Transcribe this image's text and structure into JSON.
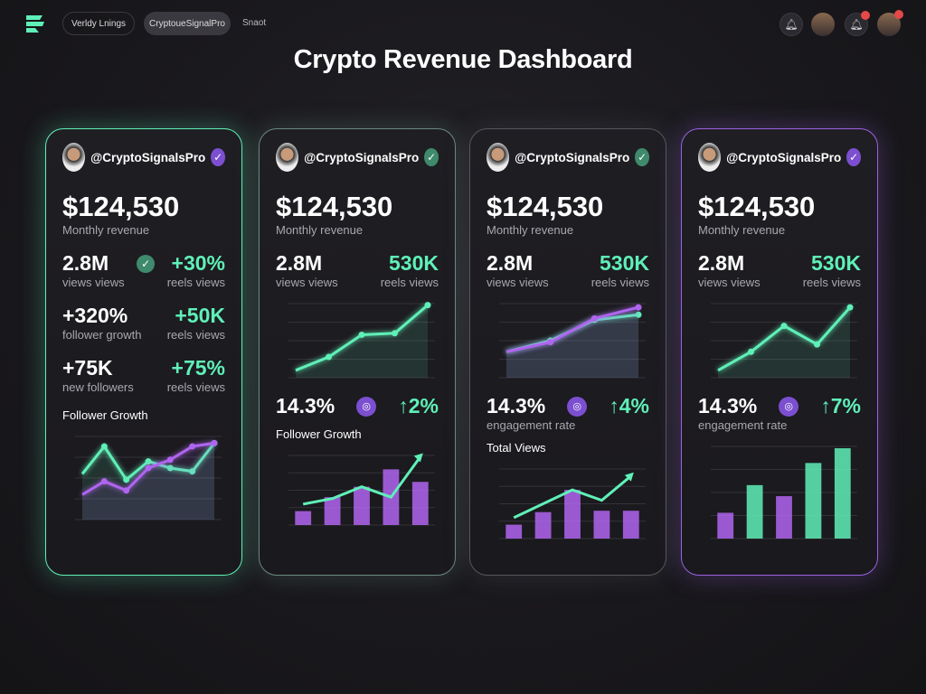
{
  "nav": {
    "pill1": "Verldy Lnings",
    "pill2": "CryptoueSignalPro",
    "link": "Snaot"
  },
  "title": "Crypto Revenue Dashboard",
  "colors": {
    "green": "#5ff0b8",
    "purple": "#b065f0",
    "bg": "#19181c"
  },
  "cards": [
    {
      "glow": "#5ff0b8",
      "handle": "@CryptoSignalsPro",
      "verified_color": "#7b4fd0",
      "revenue": "$124,530",
      "revenue_label": "Monthly revenue",
      "rows": [
        [
          "2.8M",
          "views views",
          "+30%",
          "reels views"
        ],
        [
          "+320%",
          "follower growth",
          "+50K",
          "reels views"
        ],
        [
          "+75K",
          "new followers",
          "+75%",
          "reels views"
        ]
      ],
      "chart_title": "Follower Growth"
    },
    {
      "glow": "#6a8a7e",
      "handle": "@CryptoSignalsPro",
      "verified_color": "#3f8a6c",
      "revenue": "$124,530",
      "revenue_label": "Monthly revenue",
      "rows": [
        [
          "2.8M",
          "views views",
          "530K",
          "reels views"
        ]
      ],
      "metric": "14.3%",
      "change": "↑2%",
      "metric_label": "",
      "chart_title": "Follower Growth"
    },
    {
      "glow": "#55555c",
      "handle": "@CryptoSignalsPro",
      "verified_color": "#3f8a6c",
      "revenue": "$124,530",
      "revenue_label": "Monthly revenue",
      "rows": [
        [
          "2.8M",
          "views views",
          "530K",
          "reels views"
        ]
      ],
      "metric": "14.3%",
      "change": "↑4%",
      "metric_label": "engagement rate",
      "chart_title": "Total Views"
    },
    {
      "glow": "#9a62e0",
      "handle": "@CryptoSignalsPro",
      "verified_color": "#7b4fd0",
      "revenue": "$124,530",
      "revenue_label": "Monthly revenue",
      "rows": [
        [
          "2.8M",
          "views views",
          "530K",
          "reels views"
        ]
      ],
      "metric": "14.3%",
      "change": "↑7%",
      "metric_label": "engagement rate",
      "chart_title": ""
    }
  ],
  "chart_data": [
    {
      "type": "line",
      "series": [
        {
          "color": "#5ff0b8",
          "values": [
            55,
            88,
            48,
            70,
            62,
            58,
            92
          ]
        },
        {
          "color": "#b065f0",
          "values": [
            30,
            46,
            35,
            62,
            72,
            88,
            92
          ]
        }
      ]
    },
    {
      "type": "line",
      "series": [
        {
          "color": "#5ff0b8",
          "values": [
            10,
            28,
            58,
            60,
            98
          ]
        }
      ]
    },
    {
      "type": "bar",
      "bars": [
        {
          "c": "#b065f0",
          "v": 20
        },
        {
          "c": "#b065f0",
          "v": 40
        },
        {
          "c": "#b065f0",
          "v": 55
        },
        {
          "c": "#b065f0",
          "v": 80
        },
        {
          "c": "#b065f0",
          "v": 62
        }
      ],
      "line": [
        30,
        38,
        55,
        40,
        98
      ]
    },
    {
      "type": "line",
      "series": [
        {
          "color": "#5ff0b8",
          "values": [
            35,
            50,
            78,
            85
          ]
        },
        {
          "color": "#b065f0",
          "values": [
            35,
            48,
            80,
            95
          ]
        }
      ]
    },
    {
      "type": "bar",
      "bars": [
        {
          "c": "#b065f0",
          "v": 20
        },
        {
          "c": "#b065f0",
          "v": 38
        },
        {
          "c": "#b065f0",
          "v": 70
        },
        {
          "c": "#b065f0",
          "v": 40
        },
        {
          "c": "#b065f0",
          "v": 40
        }
      ],
      "line": [
        30,
        50,
        70,
        55,
        90
      ]
    },
    {
      "type": "line",
      "series": [
        {
          "color": "#5ff0b8",
          "values": [
            10,
            35,
            70,
            45,
            95
          ]
        }
      ]
    },
    {
      "type": "bar",
      "bars": [
        {
          "c": "#b065f0",
          "v": 28
        },
        {
          "c": "#5ff0b8",
          "v": 58
        },
        {
          "c": "#b065f0",
          "v": 46
        },
        {
          "c": "#5ff0b8",
          "v": 82
        },
        {
          "c": "#5ff0b8",
          "v": 98
        }
      ]
    }
  ]
}
